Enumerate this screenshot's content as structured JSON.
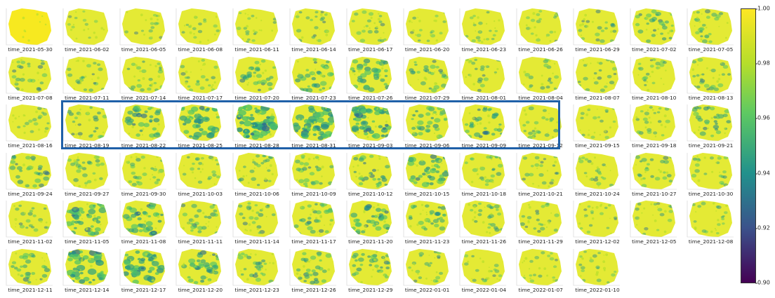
{
  "panels": {
    "labels": [
      "time_2021-05-30",
      "time_2021-06-02",
      "time_2021-06-05",
      "time_2021-06-08",
      "time_2021-06-11",
      "time_2021-06-14",
      "time_2021-06-17",
      "time_2021-06-20",
      "time_2021-06-23",
      "time_2021-06-26",
      "time_2021-06-29",
      "time_2021-07-02",
      "time_2021-07-05",
      "time_2021-07-08",
      "time_2021-07-11",
      "time_2021-07-14",
      "time_2021-07-17",
      "time_2021-07-20",
      "time_2021-07-23",
      "time_2021-07-26",
      "time_2021-07-29",
      "time_2021-08-01",
      "time_2021-08-04",
      "time_2021-08-07",
      "time_2021-08-10",
      "time_2021-08-13",
      "time_2021-08-16",
      "time_2021-08-19",
      "time_2021-08-22",
      "time_2021-08-25",
      "time_2021-08-28",
      "time_2021-08-31",
      "time_2021-09-03",
      "time_2021-09-06",
      "time_2021-09-09",
      "time_2021-09-12",
      "time_2021-09-15",
      "time_2021-09-18",
      "time_2021-09-21",
      "time_2021-09-24",
      "time_2021-09-27",
      "time_2021-09-30",
      "time_2021-10-03",
      "time_2021-10-06",
      "time_2021-10-09",
      "time_2021-10-12",
      "time_2021-10-15",
      "time_2021-10-18",
      "time_2021-10-21",
      "time_2021-10-24",
      "time_2021-10-27",
      "time_2021-10-30",
      "time_2021-11-02",
      "time_2021-11-05",
      "time_2021-11-08",
      "time_2021-11-11",
      "time_2021-11-14",
      "time_2021-11-17",
      "time_2021-11-20",
      "time_2021-11-23",
      "time_2021-11-26",
      "time_2021-11-29",
      "time_2021-12-02",
      "time_2021-12-05",
      "time_2021-12-08",
      "time_2021-12-11",
      "time_2021-12-14",
      "time_2021-12-17",
      "time_2021-12-20",
      "time_2021-12-23",
      "time_2021-12-26",
      "time_2021-12-29",
      "time_2022-01-01",
      "time_2022-01-04",
      "time_2022-01-07",
      "time_2022-01-10"
    ],
    "columns": 13,
    "intensity": [
      0.0,
      0.15,
      0.2,
      0.2,
      0.25,
      0.3,
      0.3,
      0.25,
      0.25,
      0.25,
      0.3,
      0.45,
      0.35,
      0.35,
      0.3,
      0.35,
      0.3,
      0.45,
      0.5,
      0.55,
      0.4,
      0.3,
      0.3,
      0.3,
      0.3,
      0.35,
      0.25,
      0.35,
      0.55,
      0.7,
      0.85,
      0.75,
      0.75,
      0.5,
      0.5,
      0.35,
      0.25,
      0.3,
      0.45,
      0.45,
      0.35,
      0.35,
      0.3,
      0.35,
      0.4,
      0.45,
      0.6,
      0.35,
      0.3,
      0.3,
      0.35,
      0.3,
      0.3,
      0.65,
      0.6,
      0.4,
      0.35,
      0.45,
      0.55,
      0.45,
      0.35,
      0.3,
      0.25,
      0.25,
      0.25,
      0.45,
      0.75,
      0.7,
      0.55,
      0.4,
      0.45,
      0.45,
      0.3,
      0.25,
      0.25,
      0.25
    ],
    "highlight_range": [
      "time_2021-08-19",
      "time_2021-09-12"
    ]
  },
  "colorbar": {
    "ticks": [
      "1.00",
      "0.98",
      "0.96",
      "0.94",
      "0.92",
      "0.90"
    ],
    "tick_values": [
      1.0,
      0.98,
      0.96,
      0.94,
      0.92,
      0.9
    ],
    "range": [
      0.9,
      1.0
    ],
    "colormap": "viridis"
  },
  "colors": {
    "highlight": "#1f60a8",
    "base": "#e8ec2a"
  }
}
